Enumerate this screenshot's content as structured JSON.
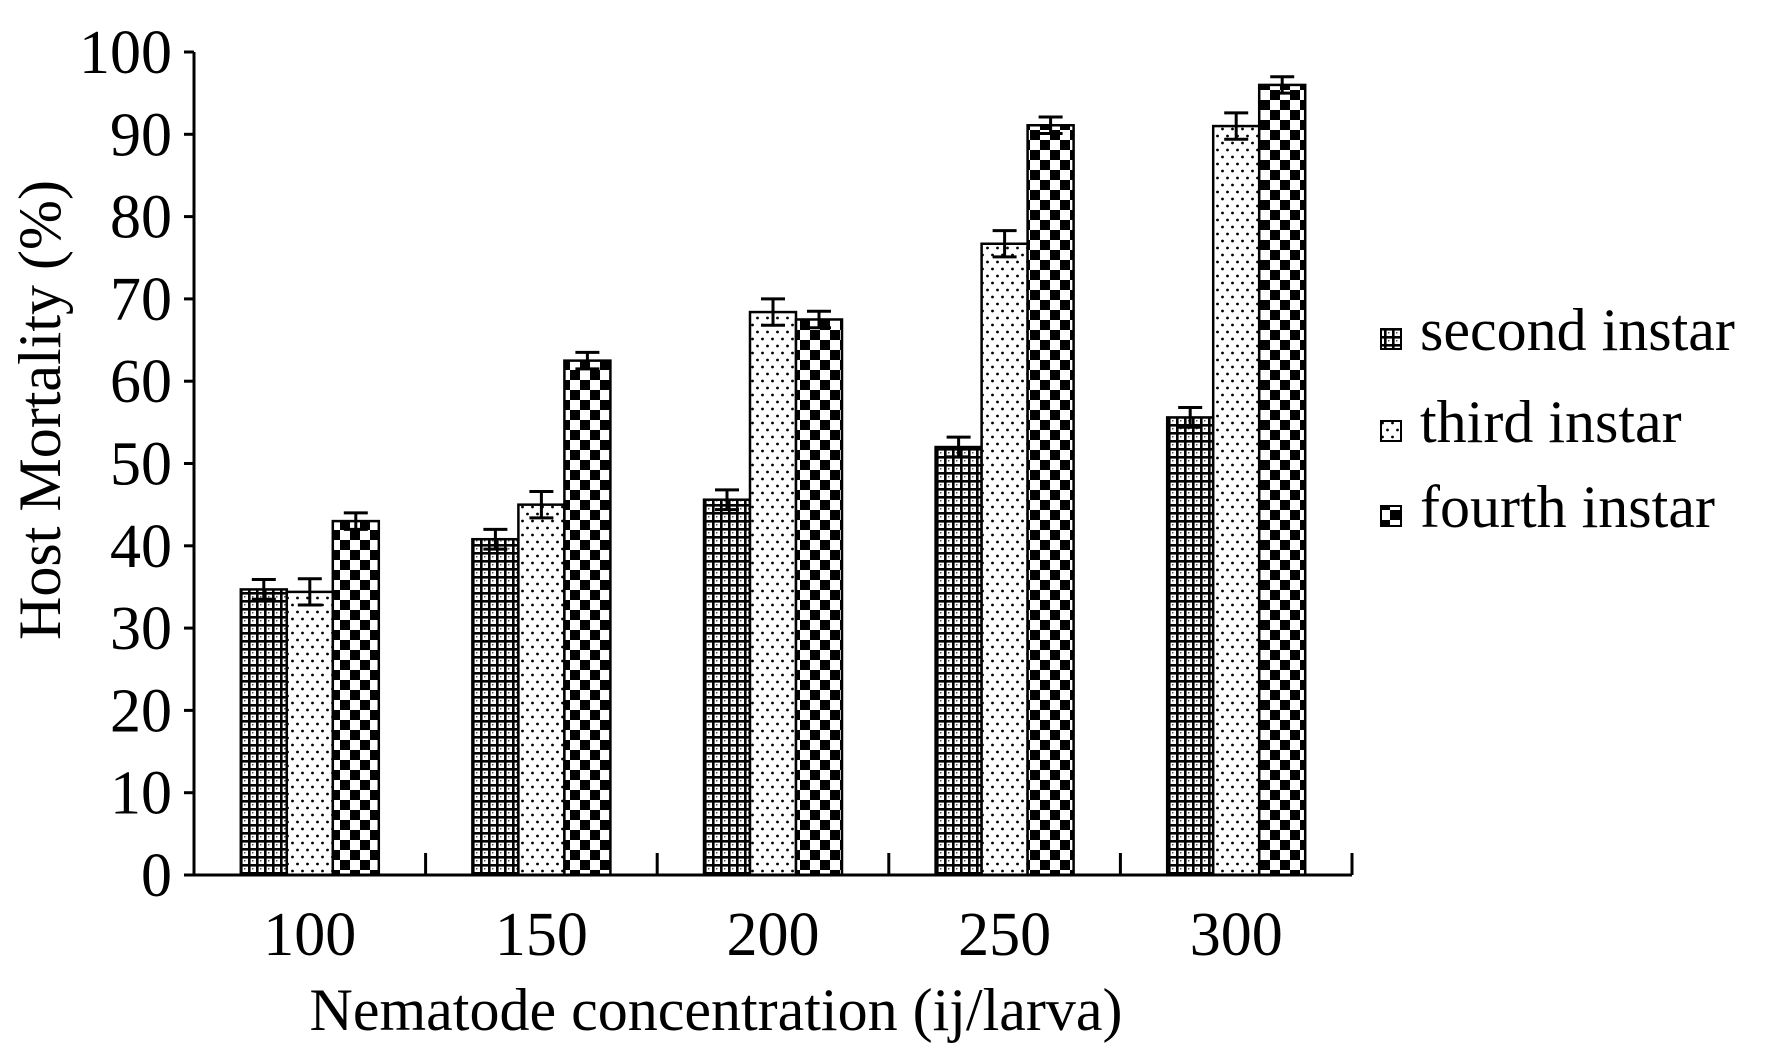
{
  "chart_data": {
    "type": "bar",
    "title": "",
    "xlabel": "Nematode concentration (ij/larva)",
    "ylabel": "Host Mortality (%)",
    "categories": [
      "100",
      "150",
      "200",
      "250",
      "300"
    ],
    "ylim": [
      0,
      100
    ],
    "yticks": [
      "0",
      "10",
      "20",
      "30",
      "40",
      "50",
      "60",
      "70",
      "80",
      "90",
      "100"
    ],
    "grid": false,
    "legend_position": "right",
    "error_bars": true,
    "series": [
      {
        "name": "second instar",
        "pattern": "grid",
        "values": [
          34.7,
          40.8,
          45.6,
          52.0,
          55.6
        ],
        "errors": [
          1.2,
          1.2,
          1.2,
          1.2,
          1.2
        ]
      },
      {
        "name": "third instar",
        "pattern": "dots",
        "values": [
          34.4,
          45.0,
          68.4,
          76.7,
          91.0
        ],
        "errors": [
          1.6,
          1.6,
          1.6,
          1.6,
          1.6
        ]
      },
      {
        "name": "fourth instar",
        "pattern": "checker",
        "values": [
          43.0,
          62.5,
          67.5,
          91.1,
          96.0
        ],
        "errors": [
          1.0,
          1.0,
          1.0,
          1.0,
          1.0
        ]
      }
    ]
  }
}
